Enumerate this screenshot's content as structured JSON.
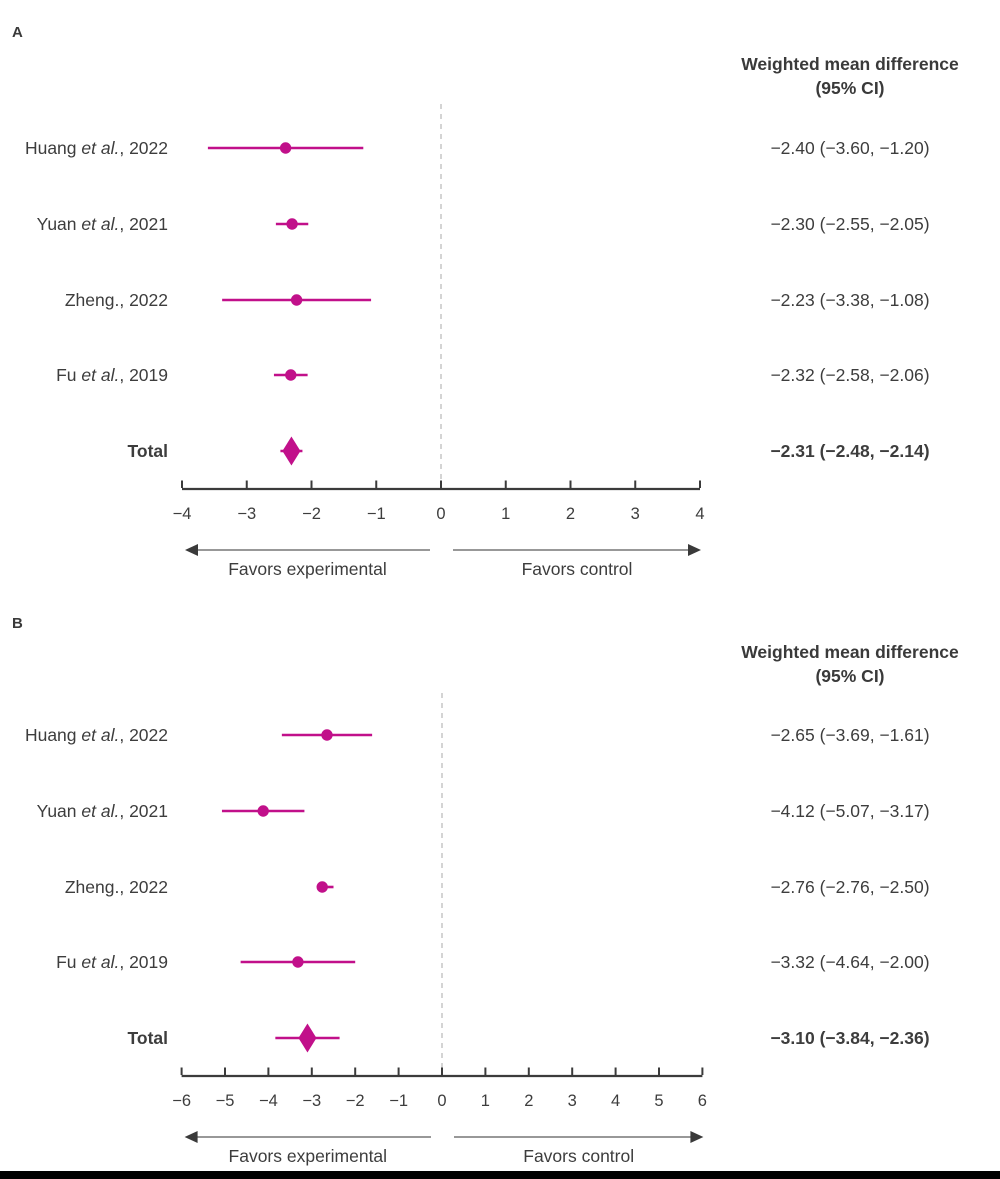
{
  "figure": {
    "accent_color": "#c1108a",
    "text_color": "#3d3d3d",
    "axis_color": "#3b3b3b",
    "arrow_line_color": "#8a8a8a",
    "arrow_head_color": "#3a3a3a",
    "zero_line_color": "#c9c9c9",
    "bottom_bar_color": "#000000",
    "background_color": "#ffffff"
  },
  "chart_data": [
    {
      "type": "forest",
      "panel_label": "A",
      "column_header_line1": "Weighted mean difference",
      "column_header_line2": "(95% CI)",
      "xlabel_left": "Favors experimental",
      "xlabel_right": "Favors control",
      "xlim": [
        -4,
        4
      ],
      "xticks": [
        -4,
        -3,
        -2,
        -1,
        0,
        1,
        2,
        3,
        4
      ],
      "xtick_labels": [
        "−4",
        "−3",
        "−2",
        "−1",
        "0",
        "1",
        "2",
        "3",
        "4"
      ],
      "zero_reference": 0,
      "grid": false,
      "rows": [
        {
          "label": [
            "Huang ",
            "et al.",
            ", 2022"
          ],
          "estimate": -2.4,
          "ci_low": -3.6,
          "ci_high": -1.2,
          "display": "−2.40 (−3.60, −1.20)",
          "marker": "circle",
          "bold": false
        },
        {
          "label": [
            "Yuan ",
            "et al.",
            ", 2021"
          ],
          "estimate": -2.3,
          "ci_low": -2.55,
          "ci_high": -2.05,
          "display": "−2.30 (−2.55, −2.05)",
          "marker": "circle",
          "bold": false
        },
        {
          "label": [
            "Zheng., 2022",
            "",
            ""
          ],
          "estimate": -2.23,
          "ci_low": -3.38,
          "ci_high": -1.08,
          "display": "−2.23 (−3.38, −1.08)",
          "marker": "circle",
          "bold": false
        },
        {
          "label": [
            "Fu ",
            "et al.",
            ", 2019"
          ],
          "estimate": -2.32,
          "ci_low": -2.58,
          "ci_high": -2.06,
          "display": "−2.32 (−2.58, −2.06)",
          "marker": "circle",
          "bold": false
        },
        {
          "label": [
            "Total",
            "",
            ""
          ],
          "estimate": -2.31,
          "ci_low": -2.48,
          "ci_high": -2.14,
          "display": "−2.31 (−2.48, −2.14)",
          "marker": "diamond",
          "bold": true
        }
      ]
    },
    {
      "type": "forest",
      "panel_label": "B",
      "column_header_line1": "Weighted mean difference",
      "column_header_line2": "(95% CI)",
      "xlabel_left": "Favors experimental",
      "xlabel_right": "Favors control",
      "xlim": [
        -6,
        6
      ],
      "xticks": [
        -6,
        -5,
        -4,
        -3,
        -2,
        -1,
        0,
        1,
        2,
        3,
        4,
        5,
        6
      ],
      "xtick_labels": [
        "−6",
        "−5",
        "−4",
        "−3",
        "−2",
        "−1",
        "0",
        "1",
        "2",
        "3",
        "4",
        "5",
        "6"
      ],
      "zero_reference": 0,
      "grid": false,
      "rows": [
        {
          "label": [
            "Huang ",
            "et al.",
            ", 2022"
          ],
          "estimate": -2.65,
          "ci_low": -3.69,
          "ci_high": -1.61,
          "display": "−2.65 (−3.69, −1.61)",
          "marker": "circle",
          "bold": false
        },
        {
          "label": [
            "Yuan ",
            "et al.",
            ", 2021"
          ],
          "estimate": -4.12,
          "ci_low": -5.07,
          "ci_high": -3.17,
          "display": "−4.12 (−5.07, −3.17)",
          "marker": "circle",
          "bold": false
        },
        {
          "label": [
            "Zheng., 2022",
            "",
            ""
          ],
          "estimate": -2.76,
          "ci_low": -2.76,
          "ci_high": -2.5,
          "display": "−2.76 (−2.76, −2.50)",
          "marker": "circle",
          "bold": false
        },
        {
          "label": [
            "Fu ",
            "et al.",
            ", 2019"
          ],
          "estimate": -3.32,
          "ci_low": -4.64,
          "ci_high": -2.0,
          "display": "−3.32 (−4.64, −2.00)",
          "marker": "circle",
          "bold": false
        },
        {
          "label": [
            "Total",
            "",
            ""
          ],
          "estimate": -3.1,
          "ci_low": -3.84,
          "ci_high": -2.36,
          "display": "−3.10 (−3.84, −2.36)",
          "marker": "diamond",
          "bold": true
        }
      ]
    }
  ]
}
